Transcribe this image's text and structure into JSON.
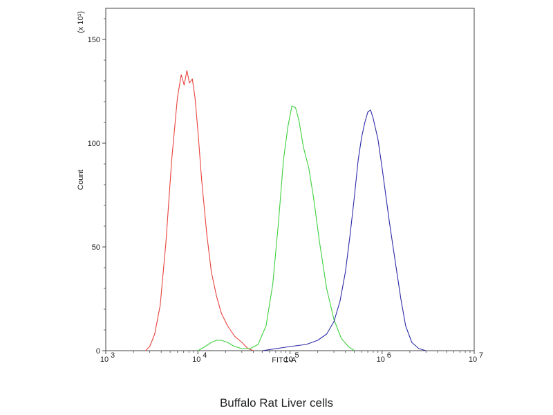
{
  "chart_data": {
    "type": "line",
    "caption": "Buffalo Rat Liver cells",
    "xlabel": "FITC-A",
    "ylabel": "Count",
    "y_multiplier_label": "(x 10¹)",
    "x_scale": "log",
    "xlim": [
      1000,
      10000000
    ],
    "ylim": [
      0,
      165
    ],
    "x_ticks": [
      {
        "value": 1000,
        "base": "10",
        "exp": "3"
      },
      {
        "value": 10000,
        "base": "10",
        "exp": "4"
      },
      {
        "value": 100000,
        "base": "10",
        "exp": "5"
      },
      {
        "value": 1000000,
        "base": "10",
        "exp": "6"
      },
      {
        "value": 10000000,
        "base": "10",
        "exp": "7"
      }
    ],
    "y_ticks": [
      0,
      50,
      100,
      150
    ],
    "grid": false,
    "legend": "none",
    "series": [
      {
        "color": "#e8413a",
        "x": [
          2700,
          3000,
          3400,
          3900,
          4500,
          5200,
          6000,
          6600,
          7100,
          7600,
          8100,
          8700,
          9300,
          10000,
          11000,
          12500,
          14000,
          16000,
          18000,
          21000,
          25000,
          30000,
          35000,
          40000
        ],
        "y": [
          0,
          2,
          8,
          22,
          52,
          92,
          122,
          133,
          128,
          135,
          129,
          131,
          122,
          106,
          82,
          56,
          38,
          26,
          18,
          12,
          7,
          4,
          1,
          0
        ]
      },
      {
        "color": "#3ecf3e",
        "x": [
          10000,
          12000,
          14000,
          16000,
          18000,
          21000,
          25000,
          30000,
          37000,
          45000,
          55000,
          65000,
          75000,
          85000,
          95000,
          105000,
          115000,
          125000,
          140000,
          160000,
          180000,
          210000,
          250000,
          300000,
          360000,
          430000,
          500000
        ],
        "y": [
          0,
          2,
          4,
          5,
          5,
          4,
          2,
          1,
          1,
          3,
          12,
          32,
          62,
          92,
          108,
          118,
          117,
          111,
          98,
          88,
          74,
          52,
          30,
          15,
          6,
          2,
          0
        ]
      },
      {
        "color": "#2b2ba8",
        "x": [
          50000,
          100000,
          150000,
          200000,
          250000,
          300000,
          350000,
          400000,
          450000,
          500000,
          550000,
          600000,
          650000,
          700000,
          750000,
          800000,
          900000,
          1000000,
          1200000,
          1400000,
          1600000,
          1800000,
          2100000,
          2500000,
          3000000
        ],
        "y": [
          0,
          2,
          3,
          5,
          8,
          14,
          24,
          38,
          56,
          74,
          92,
          103,
          110,
          115,
          116,
          112,
          102,
          88,
          62,
          42,
          25,
          12,
          4,
          1,
          0
        ]
      }
    ]
  }
}
